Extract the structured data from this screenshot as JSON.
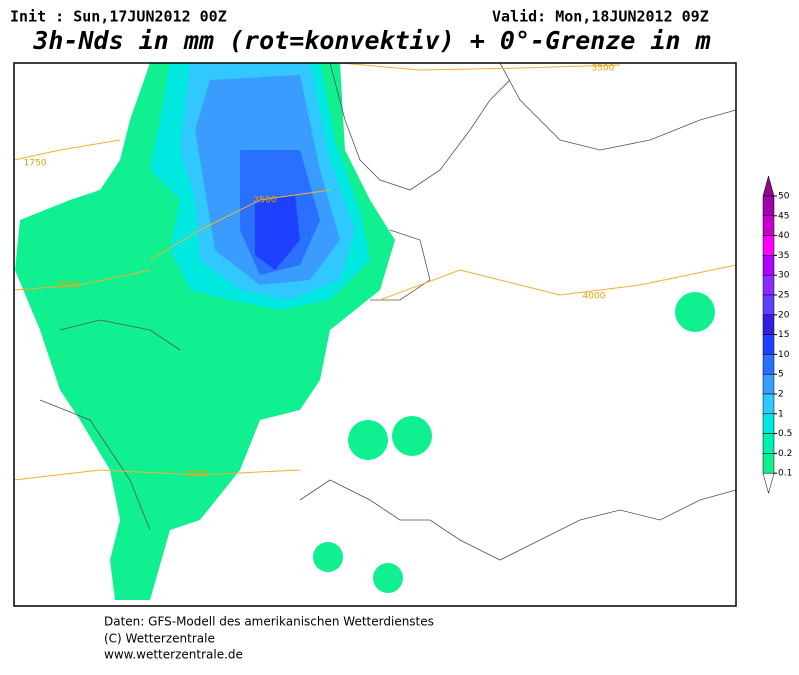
{
  "header": {
    "init": "Init : Sun,17JUN2012 00Z",
    "valid": "Valid: Mon,18JUN2012 09Z",
    "title": "3h-Nds in mm (rot=konvektiv) + 0°-Grenze in m"
  },
  "contour_labels": [
    "3500",
    "1750",
    "2500",
    "2000",
    "4000",
    "3500"
  ],
  "legend": {
    "levels": [
      50,
      45,
      40,
      35,
      30,
      25,
      20,
      15,
      10,
      5,
      2,
      1,
      0.5,
      0.2,
      0.1
    ],
    "colors": [
      "#8a0c8a",
      "#a000b0",
      "#c800c8",
      "#ff00ff",
      "#b000ff",
      "#8a2cff",
      "#6040ff",
      "#3020e0",
      "#1e40ff",
      "#2a70ff",
      "#3a9cff",
      "#30c8ff",
      "#00e8e0",
      "#00f0b0",
      "#10f090"
    ]
  },
  "footer": [
    "Daten: GFS-Modell des amerikanischen Wetterdienstes",
    "(C) Wetterzentrale",
    "www.wetterzentrale.de"
  ]
}
